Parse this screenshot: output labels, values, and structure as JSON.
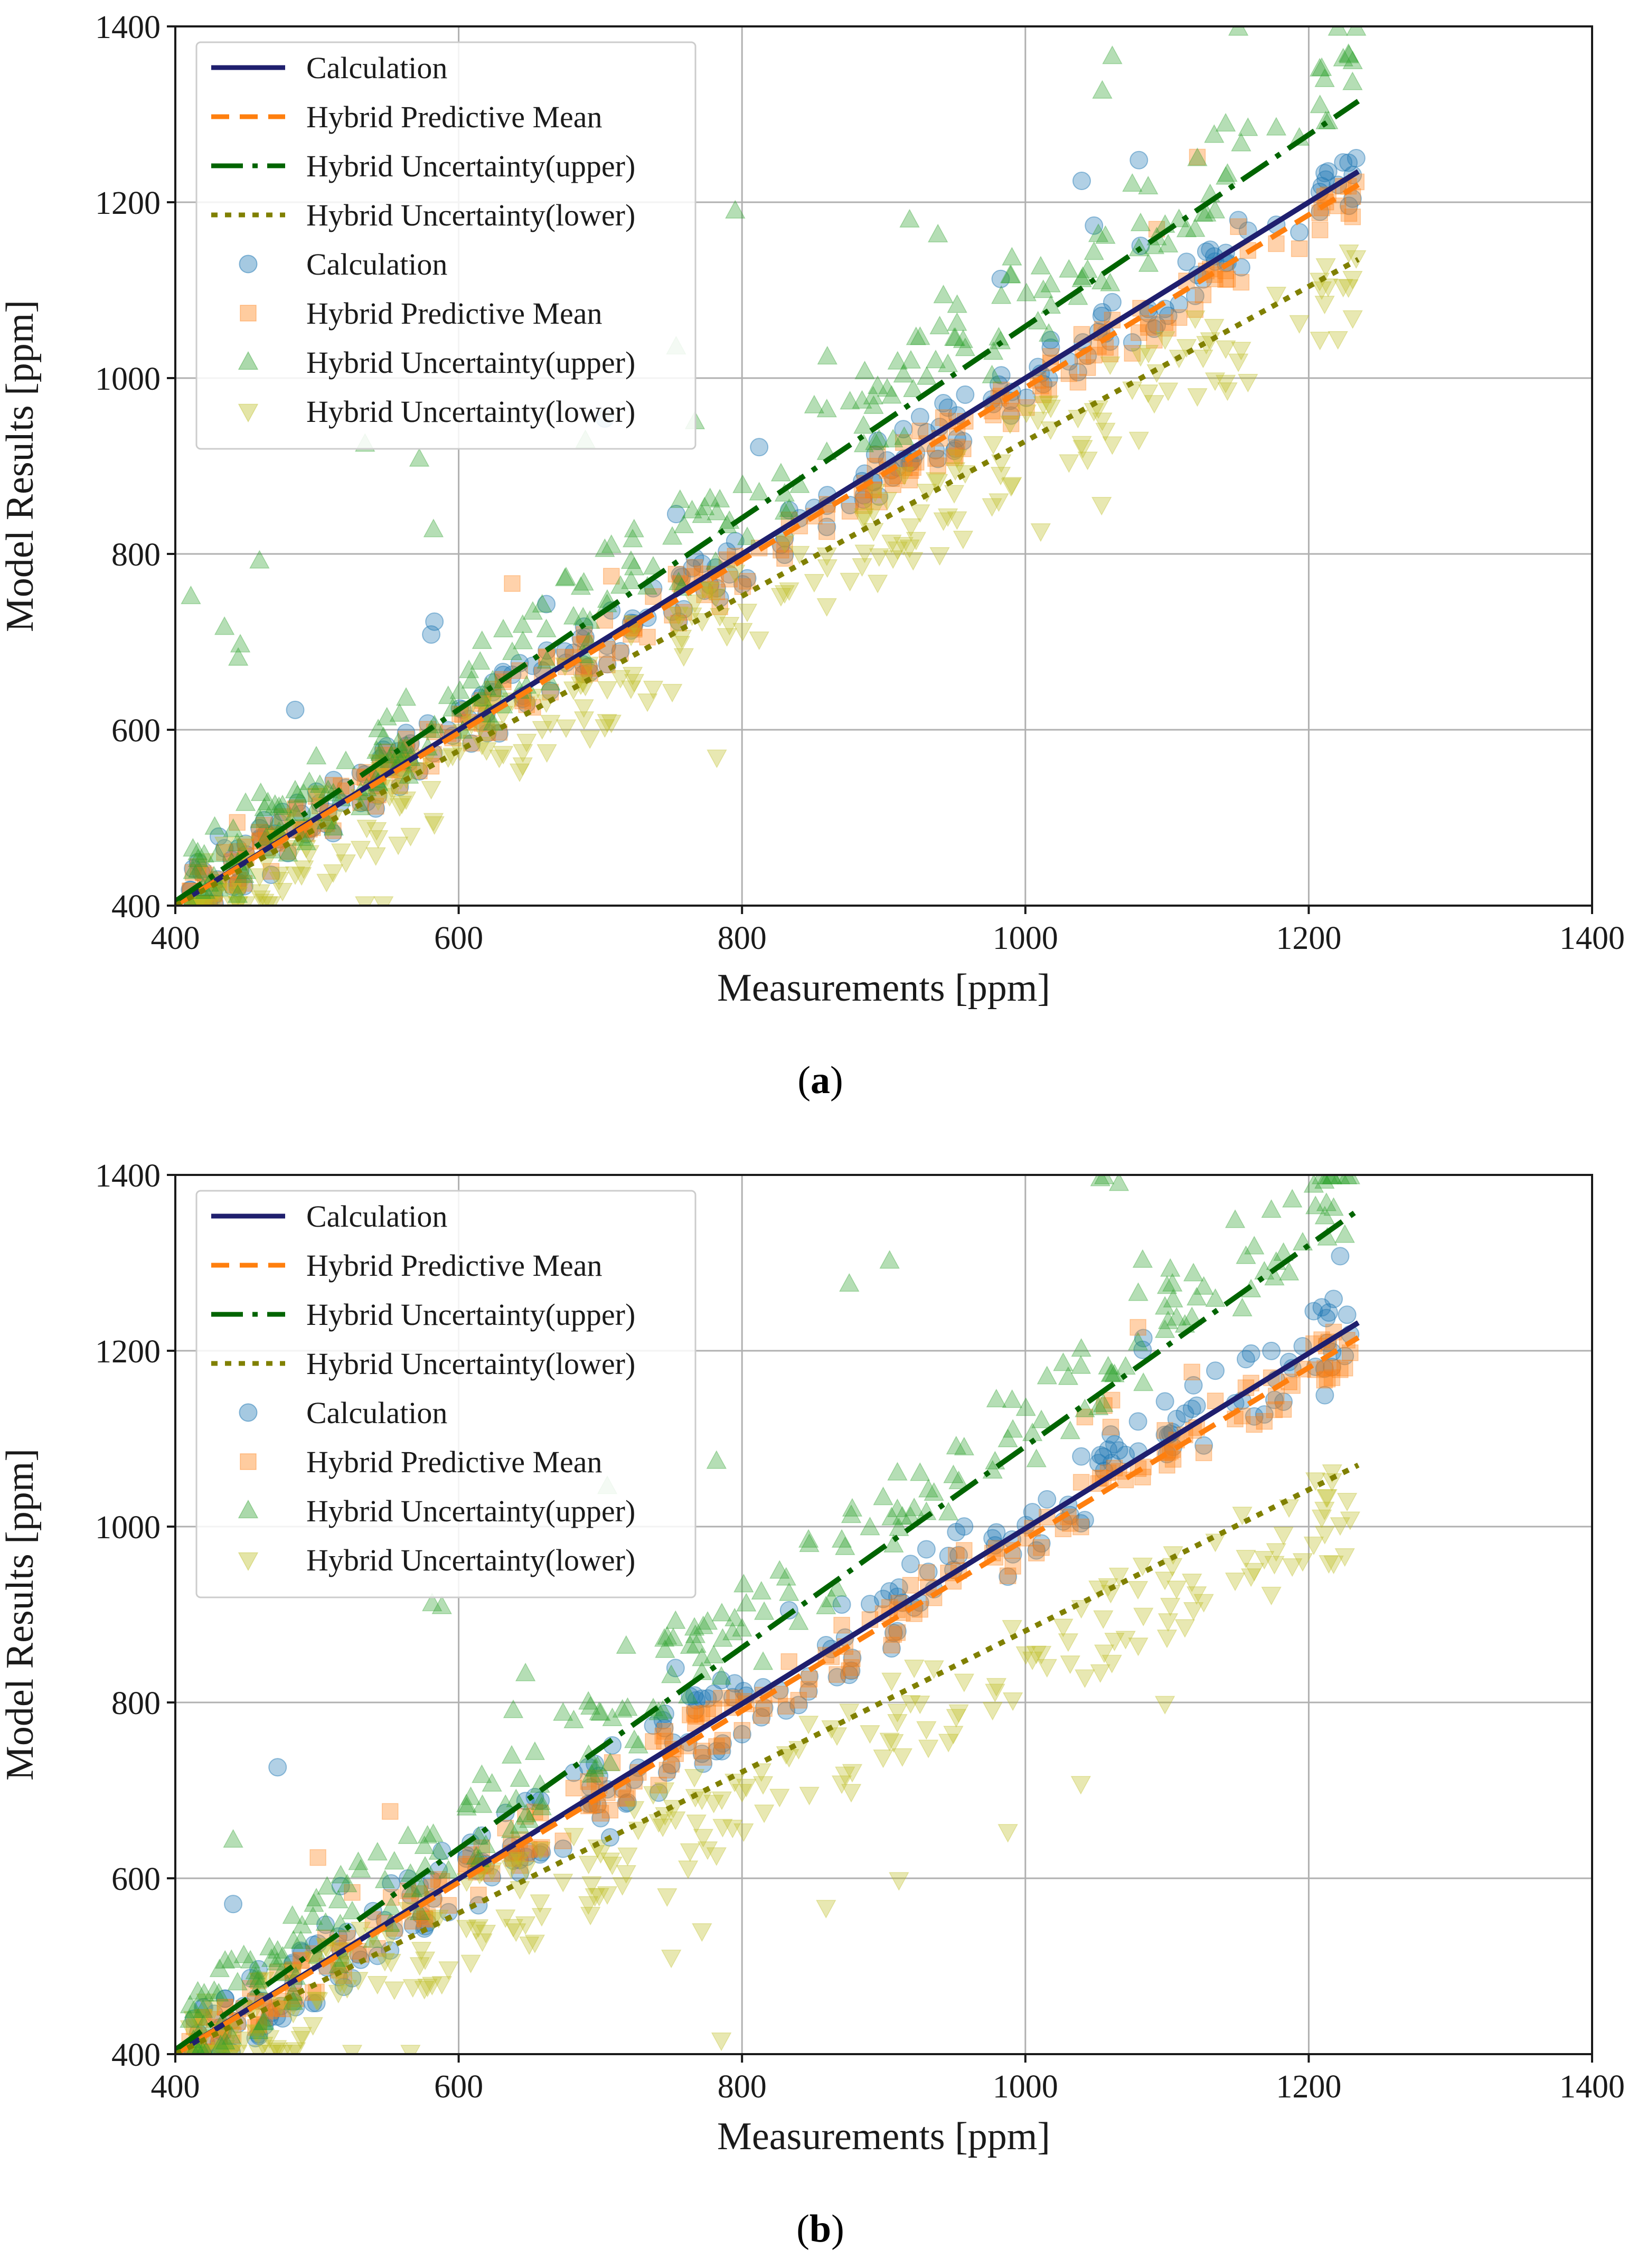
{
  "chart_data": [
    {
      "type": "scatter",
      "panel": "a",
      "caption_label": "a",
      "xlabel": "Measurements [ppm]",
      "ylabel": "Model Results [ppm]",
      "xlim": [
        400,
        1400
      ],
      "ylim": [
        400,
        1400
      ],
      "xticks": [
        400,
        600,
        800,
        1000,
        1200,
        1400
      ],
      "yticks": [
        400,
        600,
        800,
        1000,
        1200,
        1400
      ],
      "grid": true,
      "legend_position": "top-left",
      "lines": [
        {
          "name": "Calculation",
          "color": "#1f1f6e",
          "dash": "solid",
          "x": [
            400,
            1235
          ],
          "y": [
            400,
            1235
          ]
        },
        {
          "name": "Hybrid Predictive Mean",
          "color": "#ff7f0e",
          "dash": "dashed",
          "x": [
            400,
            1235
          ],
          "y": [
            400,
            1220
          ]
        },
        {
          "name": "Hybrid Uncertainty(upper)",
          "color": "#006400",
          "dash": "dashdot",
          "x": [
            400,
            1235
          ],
          "y": [
            405,
            1315
          ]
        },
        {
          "name": "Hybrid Uncertainty(lower)",
          "color": "#808000",
          "dash": "dotted",
          "x": [
            400,
            1235
          ],
          "y": [
            400,
            1135
          ]
        }
      ],
      "series": [
        {
          "name": "Calculation",
          "marker": "circle",
          "color": "#1f77b4"
        },
        {
          "name": "Hybrid Predictive Mean",
          "marker": "square",
          "color": "#ff7f0e"
        },
        {
          "name": "Hybrid Uncertainty(upper)",
          "marker": "triangle-up",
          "color": "#2ca02c"
        },
        {
          "name": "Hybrid Uncertainty(lower)",
          "marker": "triangle-down",
          "color": "#bcbd22"
        }
      ]
    },
    {
      "type": "scatter",
      "panel": "b",
      "caption_label": "b",
      "xlabel": "Measurements [ppm]",
      "ylabel": "Model Results [ppm]",
      "xlim": [
        400,
        1400
      ],
      "ylim": [
        400,
        1400
      ],
      "xticks": [
        400,
        600,
        800,
        1000,
        1200,
        1400
      ],
      "yticks": [
        400,
        600,
        800,
        1000,
        1200,
        1400
      ],
      "grid": true,
      "legend_position": "top-left",
      "lines": [
        {
          "name": "Calculation",
          "color": "#1f1f6e",
          "dash": "solid",
          "x": [
            400,
            1235
          ],
          "y": [
            400,
            1232
          ]
        },
        {
          "name": "Hybrid Predictive Mean",
          "color": "#ff7f0e",
          "dash": "dashed",
          "x": [
            400,
            1235
          ],
          "y": [
            400,
            1215
          ]
        },
        {
          "name": "Hybrid Uncertainty(upper)",
          "color": "#006400",
          "dash": "dashdot",
          "x": [
            400,
            1235
          ],
          "y": [
            405,
            1360
          ]
        },
        {
          "name": "Hybrid Uncertainty(lower)",
          "color": "#808000",
          "dash": "dotted",
          "x": [
            400,
            1235
          ],
          "y": [
            400,
            1070
          ]
        }
      ],
      "series": [
        {
          "name": "Calculation",
          "marker": "circle",
          "color": "#1f77b4"
        },
        {
          "name": "Hybrid Predictive Mean",
          "marker": "square",
          "color": "#ff7f0e"
        },
        {
          "name": "Hybrid Uncertainty(upper)",
          "marker": "triangle-up",
          "color": "#2ca02c"
        },
        {
          "name": "Hybrid Uncertainty(lower)",
          "marker": "triangle-down",
          "color": "#bcbd22"
        }
      ]
    }
  ]
}
